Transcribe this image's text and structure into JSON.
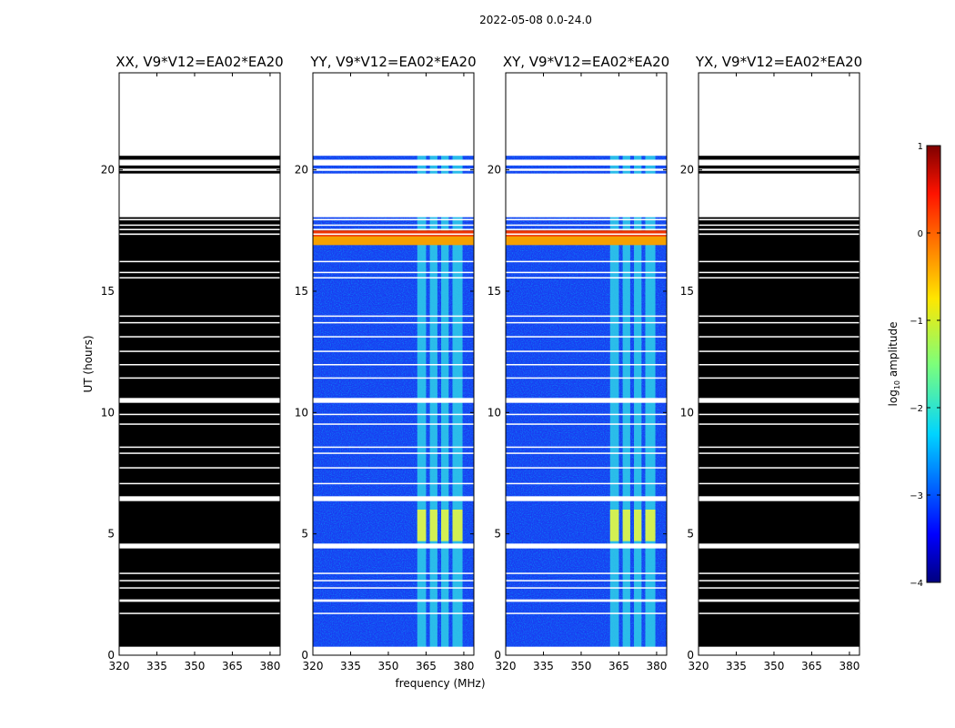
{
  "chart_data": {
    "type": "heatmap",
    "suptitle": "2022-05-08 0.0-24.0",
    "xlabel": "frequency (MHz)",
    "ylabel": "UT (hours)",
    "xticks": [
      "320",
      "335",
      "350",
      "365",
      "380"
    ],
    "yticks": [
      "0",
      "5",
      "10",
      "15",
      "20"
    ],
    "xlim": [
      320,
      384
    ],
    "ylim": [
      0,
      24
    ],
    "colorbar": {
      "label": "log10 amplitude",
      "label_base": "log",
      "label_sub": "10",
      "label_rest": " amplitude",
      "ticks": [
        "−4",
        "−3",
        "−2",
        "−1",
        "0",
        "1"
      ],
      "range": [
        -4,
        1
      ],
      "colormap": "jet"
    },
    "panels": [
      {
        "title": "XX, V9*V12=EA02*EA20",
        "fill": "black"
      },
      {
        "title": "YY, V9*V12=EA02*EA20",
        "fill": "spectrum"
      },
      {
        "title": "XY, V9*V12=EA02*EA20",
        "fill": "spectrum"
      },
      {
        "title": "YX, V9*V12=EA02*EA20",
        "fill": "black"
      }
    ],
    "data_gaps_hours": [
      [
        20.58,
        24.0
      ],
      [
        20.18,
        20.42
      ],
      [
        19.96,
        20.05
      ],
      [
        18.05,
        19.85
      ],
      [
        17.92,
        17.98
      ],
      [
        17.7,
        17.75
      ],
      [
        17.52,
        17.57
      ],
      [
        17.32,
        17.38
      ],
      [
        16.2,
        16.25
      ],
      [
        15.75,
        15.8
      ],
      [
        15.55,
        15.58
      ],
      [
        13.95,
        14.0
      ],
      [
        13.7,
        13.73
      ],
      [
        13.1,
        13.15
      ],
      [
        12.5,
        12.55
      ],
      [
        11.95,
        12.0
      ],
      [
        11.4,
        11.45
      ],
      [
        10.4,
        10.6
      ],
      [
        9.9,
        9.95
      ],
      [
        9.5,
        9.55
      ],
      [
        8.55,
        8.6
      ],
      [
        8.3,
        8.35
      ],
      [
        7.7,
        7.75
      ],
      [
        7.05,
        7.1
      ],
      [
        6.35,
        6.55
      ],
      [
        4.4,
        4.6
      ],
      [
        3.35,
        3.4
      ],
      [
        3.05,
        3.1
      ],
      [
        2.75,
        2.8
      ],
      [
        2.2,
        2.3
      ],
      [
        1.7,
        1.75
      ],
      [
        0.0,
        0.35
      ]
    ],
    "rfi_bands_mhz": [
      [
        361.5,
        365.0
      ],
      [
        366.5,
        369.5
      ],
      [
        371.0,
        374.0
      ],
      [
        375.5,
        379.5
      ]
    ],
    "strong_rfi_hours": [
      16.9,
      17.5
    ],
    "enhanced_rfi_hours": [
      4.7,
      6.0
    ]
  }
}
